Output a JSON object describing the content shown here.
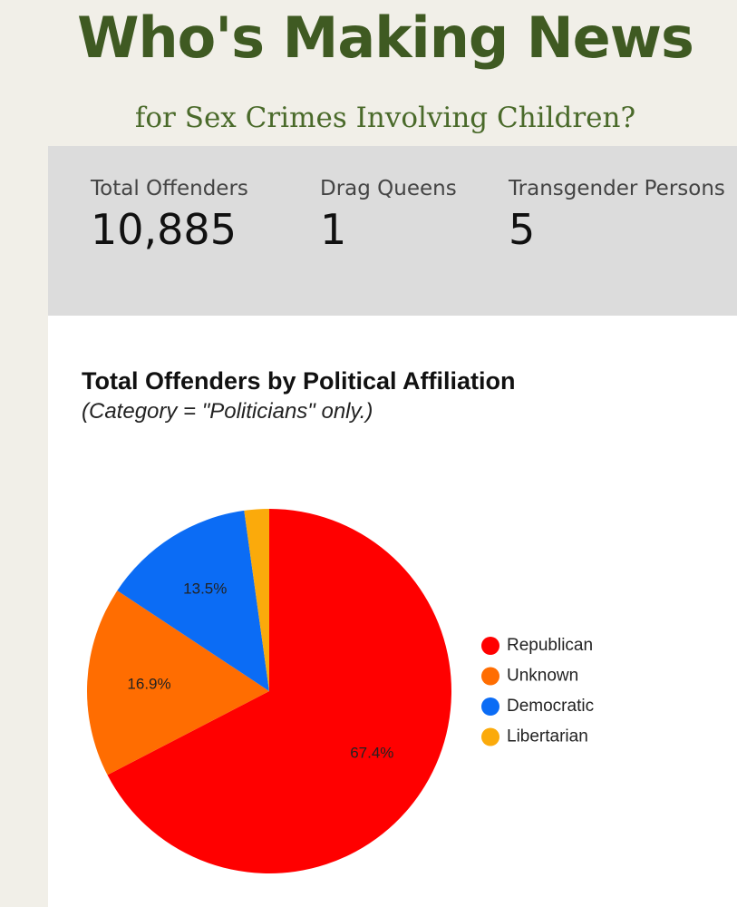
{
  "header": {
    "title": "Who's Making News",
    "subtitle": "for Sex Crimes Involving Children?"
  },
  "stats": [
    {
      "label": "Total Offenders",
      "value": "10,885"
    },
    {
      "label": "Drag Queens",
      "value": "1"
    },
    {
      "label": "Transgender Persons",
      "value": "5"
    }
  ],
  "colors": {
    "Republican": "#ff0000",
    "Unknown": "#ff6d01",
    "Democratic": "#0b6cf5",
    "Libertarian": "#fbaa0b"
  },
  "chart_data": {
    "type": "pie",
    "title": "Total Offenders by Political Affiliation",
    "subtitle": "(Category = \"Politicians\" only.)",
    "categories": [
      "Republican",
      "Unknown",
      "Democratic",
      "Libertarian"
    ],
    "values": [
      67.4,
      16.9,
      13.5,
      2.2
    ],
    "data_labels": [
      "67.4%",
      "16.9%",
      "13.5%",
      ""
    ],
    "legend_position": "right"
  }
}
